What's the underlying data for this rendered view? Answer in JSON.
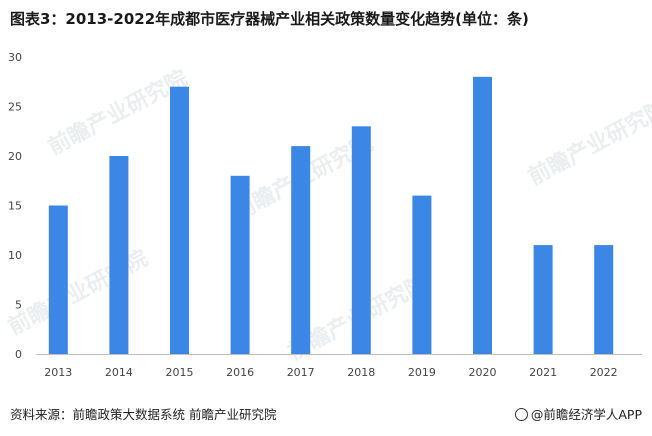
{
  "title": "图表3：2013-2022年成都市医疗器械产业相关政策数量变化趋势(单位：条)",
  "footer": {
    "source": "资料来源：前瞻政策大数据系统 前瞻产业研究院",
    "brand": "@前瞻经济学人APP"
  },
  "watermark": "前瞻产业研究院",
  "colors": {
    "bar": "#3c87e6",
    "axis_text": "#444444",
    "axis_line": "#bfbfbf"
  },
  "chart_data": {
    "type": "bar",
    "categories": [
      "2013",
      "2014",
      "2015",
      "2016",
      "2017",
      "2018",
      "2019",
      "2020",
      "2021",
      "2022"
    ],
    "values": [
      15,
      20,
      27,
      18,
      21,
      23,
      16,
      28,
      11,
      11
    ],
    "ylim": [
      0,
      30
    ],
    "yticks": [
      "0",
      "5",
      "10",
      "15",
      "20",
      "25",
      "30"
    ],
    "grid": false
  }
}
